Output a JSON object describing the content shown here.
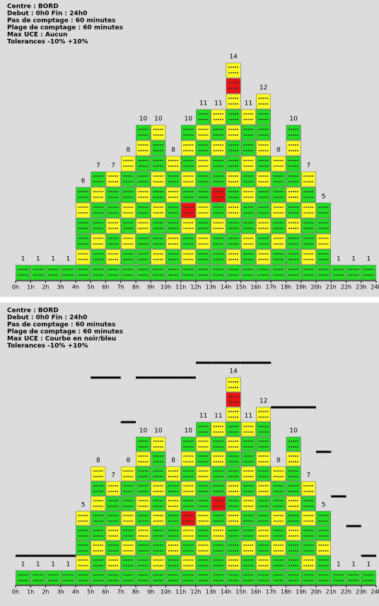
{
  "chart_data": [
    {
      "type": "bar",
      "header": [
        "Centre : BORD",
        "Debut : 0h0  Fin : 24h0",
        "Pas de comptage : 60 minutes",
        "Plage de comptage : 60 minutes",
        "Max UCE : Aucun",
        "Tolerances -10% +10%"
      ],
      "x": [
        0,
        1,
        2,
        3,
        4,
        5,
        6,
        7,
        8,
        9,
        10,
        11,
        12,
        13,
        14,
        15,
        16,
        17,
        18,
        19,
        20,
        21,
        22,
        23
      ],
      "values": [
        1,
        1,
        1,
        1,
        6,
        7,
        7,
        8,
        10,
        10,
        8,
        10,
        11,
        11,
        14,
        11,
        12,
        8,
        10,
        7,
        5,
        1,
        1,
        1
      ],
      "xlim": [
        0,
        24
      ],
      "xticks": [
        {
          "value": 0,
          "label": "0h"
        },
        {
          "value": 1,
          "label": "1h"
        },
        {
          "value": 2,
          "label": "2h"
        },
        {
          "value": 3,
          "label": "3h"
        },
        {
          "value": 4,
          "label": "4h"
        },
        {
          "value": 5,
          "label": "5h"
        },
        {
          "value": 6,
          "label": "6h"
        },
        {
          "value": 7,
          "label": "7h"
        },
        {
          "value": 8,
          "label": "8h"
        },
        {
          "value": 9,
          "label": "9h"
        },
        {
          "value": 10,
          "label": "10h"
        },
        {
          "value": 11,
          "label": "11h"
        },
        {
          "value": 12,
          "label": "12h"
        },
        {
          "value": 13,
          "label": "13h"
        },
        {
          "value": 14,
          "label": "14h"
        },
        {
          "value": 15,
          "label": "15h"
        },
        {
          "value": 16,
          "label": "16h"
        },
        {
          "value": 17,
          "label": "17h"
        },
        {
          "value": 18,
          "label": "18h"
        },
        {
          "value": 19,
          "label": "19h"
        },
        {
          "value": 20,
          "label": "20h"
        },
        {
          "value": 21,
          "label": "21h"
        },
        {
          "value": 22,
          "label": "22h"
        },
        {
          "value": 23,
          "label": "23h"
        },
        {
          "value": 24,
          "label": "24h"
        }
      ]
    },
    {
      "type": "bar",
      "header": [
        "Centre : BORD",
        "Debut : 0h0  Fin : 24h0",
        "Pas de comptage : 60 minutes",
        "Plage de comptage : 60 minutes",
        "Max UCE : Courbe en noir/bleu",
        "Tolerances -10% +10%"
      ],
      "x": [
        0,
        1,
        2,
        3,
        4,
        5,
        6,
        7,
        8,
        9,
        10,
        11,
        12,
        13,
        14,
        15,
        16,
        17,
        18,
        19,
        20,
        21,
        22,
        23
      ],
      "values": [
        1,
        1,
        1,
        1,
        5,
        8,
        7,
        8,
        10,
        10,
        8,
        10,
        11,
        11,
        14,
        11,
        12,
        8,
        10,
        7,
        5,
        1,
        1,
        1
      ],
      "capacity": [
        2,
        2,
        2,
        2,
        null,
        14,
        14,
        11,
        14,
        14,
        14,
        14,
        15,
        15,
        15,
        15,
        15,
        12,
        12,
        12,
        9,
        6,
        4,
        2
      ],
      "xlim": [
        0,
        24
      ],
      "xticks": [
        {
          "value": 0,
          "label": "0h"
        },
        {
          "value": 1,
          "label": "1h"
        },
        {
          "value": 2,
          "label": "2h"
        },
        {
          "value": 3,
          "label": "3h"
        },
        {
          "value": 4,
          "label": "4h"
        },
        {
          "value": 5,
          "label": "5h"
        },
        {
          "value": 6,
          "label": "6h"
        },
        {
          "value": 7,
          "label": "7h"
        },
        {
          "value": 8,
          "label": "8h"
        },
        {
          "value": 9,
          "label": "9h"
        },
        {
          "value": 10,
          "label": "10h"
        },
        {
          "value": 11,
          "label": "11h"
        },
        {
          "value": 12,
          "label": "12h"
        },
        {
          "value": 13,
          "label": "13h"
        },
        {
          "value": 14,
          "label": "14h"
        },
        {
          "value": 15,
          "label": "15h"
        },
        {
          "value": 16,
          "label": "16h"
        },
        {
          "value": 17,
          "label": "17h"
        },
        {
          "value": 18,
          "label": "18h"
        },
        {
          "value": 19,
          "label": "19h"
        },
        {
          "value": 20,
          "label": "20h"
        },
        {
          "value": 21,
          "label": "21h"
        },
        {
          "value": 22,
          "label": "22h"
        },
        {
          "value": 23,
          "label": "23h"
        },
        {
          "value": 24,
          "label": "24h"
        }
      ]
    }
  ]
}
